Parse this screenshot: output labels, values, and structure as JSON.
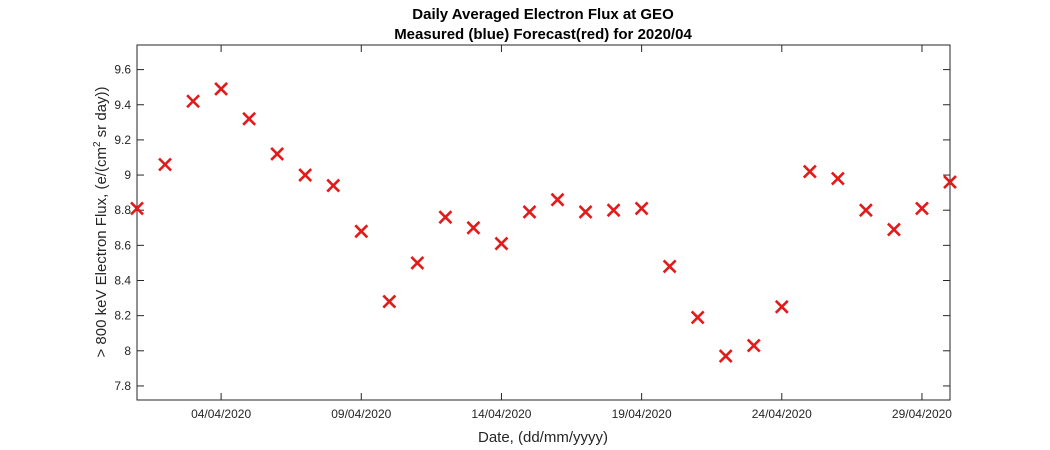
{
  "chart_data": {
    "type": "scatter",
    "title": "Daily Averaged Electron Flux at GEO",
    "subtitle": "Measured (blue) Forecast(red) for 2020/04",
    "xlabel": "Date, (dd/mm/yyyy)",
    "ylabel_main": "> 800 keV Electron Flux, (e/(cm",
    "ylabel_sup": "2",
    "ylabel_tail": " sr day))",
    "xlim": [
      "2020-04-01",
      "2020-04-30"
    ],
    "ylim": [
      7.72,
      9.74
    ],
    "xticks": [
      "2020-04-04",
      "2020-04-09",
      "2020-04-14",
      "2020-04-19",
      "2020-04-24",
      "2020-04-29"
    ],
    "xticklabels": [
      "04/04/2020",
      "09/04/2020",
      "14/04/2020",
      "19/04/2020",
      "24/04/2020",
      "29/04/2020"
    ],
    "yticks": [
      7.8,
      8.0,
      8.2,
      8.4,
      8.6,
      8.8,
      9.0,
      9.2,
      9.4,
      9.6
    ],
    "yticklabels": [
      "7.8",
      "8",
      "8.2",
      "8.4",
      "8.6",
      "8.8",
      "9",
      "9.2",
      "9.4",
      "9.6"
    ],
    "grid": false,
    "marker": "x",
    "series": [
      {
        "color": "#e31a1a",
        "x": [
          "2020-04-01",
          "2020-04-02",
          "2020-04-03",
          "2020-04-04",
          "2020-04-05",
          "2020-04-06",
          "2020-04-07",
          "2020-04-08",
          "2020-04-09",
          "2020-04-10",
          "2020-04-11",
          "2020-04-12",
          "2020-04-13",
          "2020-04-14",
          "2020-04-15",
          "2020-04-16",
          "2020-04-17",
          "2020-04-18",
          "2020-04-19",
          "2020-04-20",
          "2020-04-21",
          "2020-04-22",
          "2020-04-23",
          "2020-04-24",
          "2020-04-25",
          "2020-04-26",
          "2020-04-27",
          "2020-04-28",
          "2020-04-29",
          "2020-04-30"
        ],
        "y": [
          8.81,
          9.06,
          9.42,
          9.49,
          9.32,
          9.12,
          9.0,
          8.94,
          8.68,
          8.28,
          8.5,
          8.76,
          8.7,
          8.61,
          8.79,
          8.86,
          8.79,
          8.8,
          8.81,
          8.48,
          8.19,
          7.97,
          8.03,
          8.25,
          9.02,
          8.98,
          8.8,
          8.69,
          8.81,
          8.96
        ]
      }
    ]
  }
}
